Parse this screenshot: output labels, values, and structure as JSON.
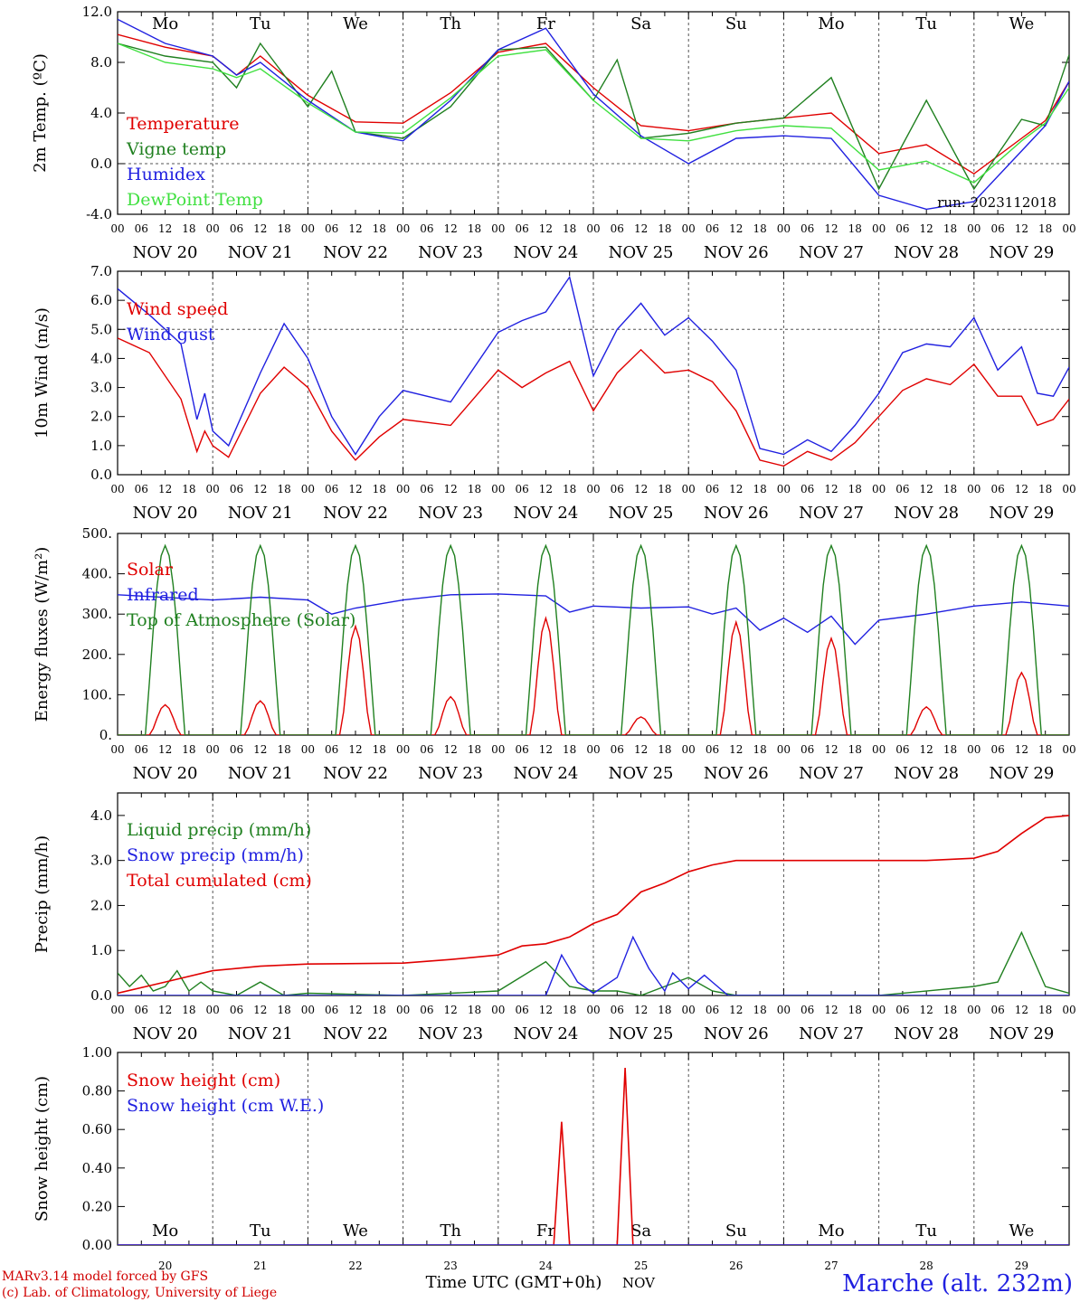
{
  "footer": {
    "model_line1": "MARv3.14 model forced by GFS",
    "model_line2": "(c) Lab. of Climatology, University of Liege",
    "time_axis_title": "Time UTC (GMT+0h)",
    "month": "NOV",
    "station": "Marche (alt. 232m)"
  },
  "days": [
    "20",
    "21",
    "22",
    "23",
    "24",
    "25",
    "26",
    "27",
    "28",
    "29"
  ],
  "day_prefix": "NOV",
  "weekdays": [
    "Mo",
    "Tu",
    "We",
    "Th",
    "Fr",
    "Sa",
    "Su",
    "Mo",
    "Tu",
    "We"
  ],
  "weekday_colors": [
    "#000000",
    "#000000",
    "#000000",
    "#000000",
    "#000000",
    "#e00000",
    "#e00000",
    "#000000",
    "#000000",
    "#000000"
  ],
  "hour_ticks": [
    "00",
    "06",
    "12",
    "18"
  ],
  "chart_data": [
    {
      "type": "line",
      "ylabel": "2m Temp. (ºC)",
      "ylim": [
        -4,
        12
      ],
      "yticks": [
        "-4.0",
        "0.0",
        "4.0",
        "8.0",
        "12.0"
      ],
      "grid": true,
      "run_label": "run: 2023112018",
      "x_unit": "hours since 00 UTC NOV 20",
      "series": [
        {
          "name": "Temperature",
          "color": "#e00000",
          "x": [
            0,
            12,
            24,
            30,
            36,
            48,
            60,
            72,
            84,
            96,
            108,
            120,
            132,
            144,
            156,
            168,
            180,
            192,
            204,
            216,
            228,
            234,
            240
          ],
          "values": [
            10.2,
            9.2,
            8.5,
            7.0,
            8.5,
            5.4,
            3.3,
            3.2,
            5.6,
            8.8,
            9.5,
            6.0,
            3.0,
            2.6,
            3.2,
            3.6,
            4.0,
            0.8,
            1.5,
            -0.8,
            2.0,
            3.4,
            6.5
          ]
        },
        {
          "name": "Vigne temp",
          "color": "#208020",
          "x": [
            0,
            12,
            24,
            30,
            36,
            48,
            54,
            60,
            72,
            84,
            96,
            108,
            120,
            126,
            132,
            144,
            156,
            168,
            180,
            192,
            204,
            216,
            228,
            234,
            240
          ],
          "values": [
            9.5,
            8.5,
            8.0,
            6.0,
            9.5,
            4.5,
            7.3,
            2.5,
            2.0,
            4.5,
            9.0,
            9.2,
            5.0,
            8.2,
            2.0,
            2.4,
            3.2,
            3.6,
            6.8,
            -2.0,
            5.0,
            -2.0,
            3.5,
            3.0,
            8.6
          ]
        },
        {
          "name": "Humidex",
          "color": "#2020e0",
          "x": [
            0,
            12,
            24,
            30,
            36,
            48,
            60,
            72,
            84,
            96,
            108,
            120,
            132,
            144,
            156,
            168,
            180,
            192,
            204,
            216,
            228,
            234,
            240
          ],
          "values": [
            11.4,
            9.5,
            8.5,
            7.0,
            8.0,
            5.0,
            2.5,
            1.8,
            5.0,
            9.0,
            10.7,
            5.5,
            2.2,
            0.0,
            2.0,
            2.2,
            2.0,
            -2.5,
            -3.6,
            -3.0,
            1.0,
            3.0,
            6.5
          ]
        },
        {
          "name": "DewPoint Temp",
          "color": "#40e040",
          "x": [
            0,
            12,
            24,
            30,
            36,
            48,
            60,
            72,
            84,
            96,
            108,
            120,
            132,
            144,
            156,
            168,
            180,
            192,
            204,
            216,
            228,
            234,
            240
          ],
          "values": [
            9.5,
            8.0,
            7.5,
            6.8,
            7.5,
            4.8,
            2.5,
            2.4,
            5.2,
            8.5,
            9.0,
            5.0,
            2.0,
            1.8,
            2.6,
            3.0,
            2.8,
            -0.5,
            0.2,
            -1.5,
            1.8,
            3.2,
            6.0
          ]
        }
      ]
    },
    {
      "type": "line",
      "ylabel": "10m Wind (m/s)",
      "ylim": [
        0,
        7
      ],
      "yticks": [
        "0.0",
        "1.0",
        "2.0",
        "3.0",
        "4.0",
        "5.0",
        "6.0",
        "7.0"
      ],
      "grid": true,
      "x_unit": "hours since 00 UTC NOV 20",
      "series": [
        {
          "name": "Wind speed",
          "color": "#e00000",
          "x": [
            0,
            8,
            16,
            20,
            22,
            24,
            28,
            36,
            42,
            48,
            54,
            60,
            66,
            72,
            84,
            96,
            102,
            108,
            114,
            120,
            126,
            132,
            138,
            144,
            150,
            156,
            162,
            168,
            174,
            180,
            186,
            192,
            198,
            204,
            210,
            216,
            222,
            228,
            232,
            236,
            240
          ],
          "values": [
            4.7,
            4.2,
            2.6,
            0.8,
            1.5,
            1.0,
            0.6,
            2.8,
            3.7,
            3.0,
            1.5,
            0.5,
            1.3,
            1.9,
            1.7,
            3.6,
            3.0,
            3.5,
            3.9,
            2.2,
            3.5,
            4.3,
            3.5,
            3.6,
            3.2,
            2.2,
            0.5,
            0.3,
            0.8,
            0.5,
            1.1,
            2.0,
            2.9,
            3.3,
            3.1,
            3.8,
            2.7,
            2.7,
            1.7,
            1.9,
            2.6
          ]
        },
        {
          "name": "Wind gust",
          "color": "#2020e0",
          "x": [
            0,
            8,
            16,
            20,
            22,
            24,
            28,
            36,
            42,
            48,
            54,
            60,
            66,
            72,
            84,
            96,
            102,
            108,
            114,
            120,
            126,
            132,
            138,
            144,
            150,
            156,
            162,
            168,
            174,
            180,
            186,
            192,
            198,
            204,
            210,
            216,
            222,
            228,
            232,
            236,
            240
          ],
          "values": [
            6.4,
            5.5,
            4.5,
            1.9,
            2.8,
            1.5,
            1.0,
            3.5,
            5.2,
            4.0,
            2.0,
            0.7,
            2.0,
            2.9,
            2.5,
            4.9,
            5.3,
            5.6,
            6.8,
            3.4,
            5.0,
            5.9,
            4.8,
            5.4,
            4.6,
            3.6,
            0.9,
            0.7,
            1.2,
            0.8,
            1.7,
            2.8,
            4.2,
            4.5,
            4.4,
            5.4,
            3.6,
            4.4,
            2.8,
            2.7,
            3.7
          ]
        }
      ]
    },
    {
      "type": "line",
      "ylabel": "Energy fluxes (W/m²)",
      "ylim": [
        0,
        500
      ],
      "yticks": [
        "0.",
        "100.",
        "200.",
        "300.",
        "400.",
        "500."
      ],
      "grid": true,
      "x_unit": "hours since 00 UTC NOV 20",
      "solar_peaks": [
        75,
        85,
        270,
        95,
        290,
        45,
        280,
        240,
        70,
        155
      ],
      "toa_peak": 470,
      "series": [
        {
          "name": "Solar",
          "color": "#e00000"
        },
        {
          "name": "Infrared",
          "color": "#2020e0",
          "x": [
            0,
            24,
            36,
            48,
            54,
            60,
            72,
            84,
            96,
            108,
            114,
            120,
            132,
            144,
            150,
            156,
            162,
            168,
            174,
            180,
            186,
            192,
            204,
            216,
            228,
            240
          ],
          "values": [
            348,
            335,
            342,
            335,
            300,
            315,
            335,
            348,
            350,
            345,
            305,
            320,
            315,
            318,
            300,
            315,
            260,
            290,
            255,
            295,
            225,
            285,
            300,
            320,
            330,
            320
          ]
        },
        {
          "name": "Top of Atmosphere (Solar)",
          "color": "#208020"
        }
      ]
    },
    {
      "type": "line",
      "ylabel": "Precip (mm/h)",
      "ylim": [
        0,
        4.5
      ],
      "yticks": [
        "0.0",
        "1.0",
        "2.0",
        "3.0",
        "4.0"
      ],
      "grid": true,
      "x_unit": "hours since 00 UTC NOV 20",
      "series": [
        {
          "name": "Liquid precip (mm/h)",
          "color": "#208020",
          "x": [
            0,
            3,
            6,
            9,
            12,
            15,
            18,
            21,
            24,
            30,
            36,
            42,
            48,
            72,
            96,
            108,
            114,
            120,
            126,
            132,
            138,
            144,
            150,
            156,
            168,
            192,
            216,
            222,
            228,
            234,
            240
          ],
          "values": [
            0.5,
            0.2,
            0.45,
            0.1,
            0.2,
            0.55,
            0.1,
            0.3,
            0.1,
            0.0,
            0.3,
            0.0,
            0.05,
            0.0,
            0.1,
            0.75,
            0.2,
            0.1,
            0.1,
            0.0,
            0.2,
            0.4,
            0.1,
            0.0,
            0.0,
            0.0,
            0.2,
            0.3,
            1.4,
            0.2,
            0.05
          ]
        },
        {
          "name": "Snow precip (mm/h)",
          "color": "#2020e0",
          "x": [
            0,
            96,
            108,
            112,
            116,
            120,
            126,
            130,
            134,
            138,
            140,
            144,
            148,
            150,
            154,
            156,
            160,
            240
          ],
          "values": [
            0.0,
            0.0,
            0.0,
            0.9,
            0.3,
            0.05,
            0.4,
            1.3,
            0.6,
            0.1,
            0.5,
            0.15,
            0.45,
            0.3,
            0.0,
            0.0,
            0.0,
            0.0
          ]
        },
        {
          "name": "Total cumulated (cm)",
          "color": "#e00000",
          "x": [
            0,
            12,
            24,
            36,
            48,
            72,
            84,
            96,
            102,
            108,
            114,
            120,
            126,
            132,
            138,
            144,
            150,
            156,
            168,
            192,
            204,
            216,
            222,
            228,
            234,
            240
          ],
          "values": [
            0.05,
            0.3,
            0.55,
            0.65,
            0.7,
            0.72,
            0.8,
            0.9,
            1.1,
            1.15,
            1.3,
            1.6,
            1.8,
            2.3,
            2.5,
            2.75,
            2.9,
            3.0,
            3.0,
            3.0,
            3.0,
            3.05,
            3.2,
            3.6,
            3.95,
            4.0
          ]
        }
      ]
    },
    {
      "type": "line",
      "ylabel": "Snow height (cm)",
      "ylim": [
        0,
        1.0
      ],
      "yticks": [
        "0.00",
        "0.20",
        "0.40",
        "0.60",
        "0.80",
        "1.00"
      ],
      "grid": true,
      "x_unit": "hours since 00 UTC NOV 20",
      "series": [
        {
          "name": "Snow height (cm)",
          "color": "#e00000",
          "x": [
            0,
            110,
            112,
            114,
            126,
            128,
            130,
            240
          ],
          "values": [
            0,
            0,
            0.64,
            0,
            0,
            0.92,
            0,
            0
          ]
        },
        {
          "name": "Snow height (cm W.E.)",
          "color": "#2020e0",
          "x": [
            0,
            240
          ],
          "values": [
            0,
            0
          ]
        }
      ]
    }
  ]
}
